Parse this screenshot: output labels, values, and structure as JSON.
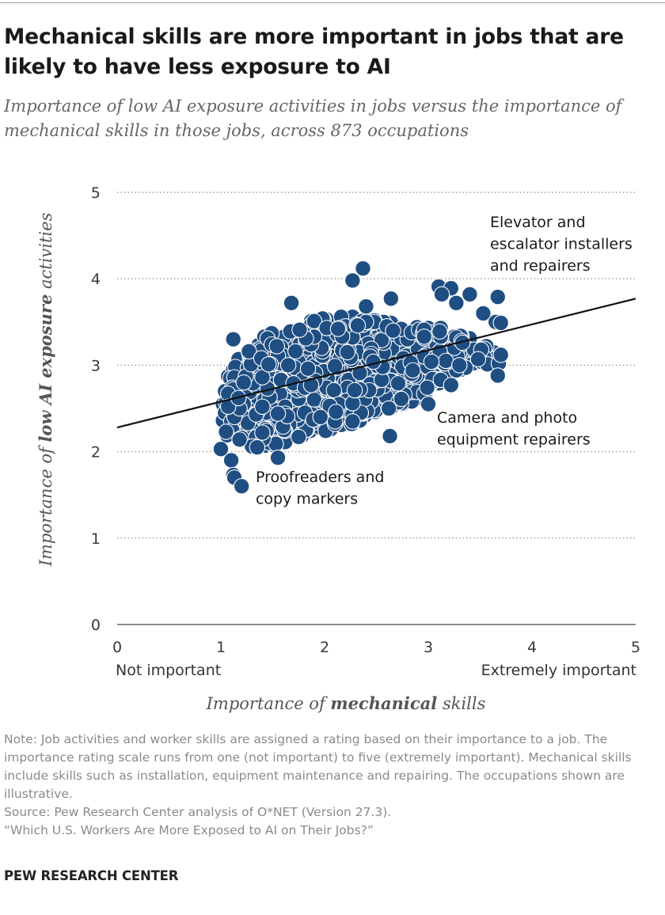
{
  "title": "Mechanical skills are more important in jobs that are likely to have less exposure to AI",
  "subtitle": "Importance of low AI exposure activities in jobs versus the importance of mechanical skills in those jobs, across 873 occupations",
  "chart_data": {
    "type": "scatter",
    "title": "Mechanical skills are more important in jobs that are likely to have less exposure to AI",
    "subtitle": "Importance of low AI exposure activities in jobs versus the importance of mechanical skills in those jobs, across 873 occupations",
    "xlabel": {
      "before": "Importance of ",
      "emphasis": "mechanical",
      "after": " skills"
    },
    "ylabel": {
      "before": "Importance of ",
      "emphasis": "low AI exposure",
      "after": " activities"
    },
    "xlim": [
      0,
      5
    ],
    "ylim": [
      0,
      5
    ],
    "x_ticks": [
      "0",
      "1",
      "2",
      "3",
      "4",
      "5"
    ],
    "y_ticks": [
      "0",
      "1",
      "2",
      "3",
      "4",
      "5"
    ],
    "x_scale_captions": {
      "low": "Not important",
      "high": "Extremely important"
    },
    "grid": "horizontal dotted",
    "n_points": 873,
    "point_color": "#1f4e82",
    "trendline": {
      "x": [
        0,
        5
      ],
      "y": [
        2.28,
        3.77
      ],
      "color": "#111111"
    },
    "cloud": {
      "outline": [
        [
          1.0,
          2.55
        ],
        [
          1.03,
          2.78
        ],
        [
          1.1,
          2.92
        ],
        [
          1.18,
          3.1
        ],
        [
          1.3,
          3.2
        ],
        [
          1.45,
          3.37
        ],
        [
          1.65,
          3.46
        ],
        [
          1.9,
          3.53
        ],
        [
          2.15,
          3.58
        ],
        [
          2.45,
          3.55
        ],
        [
          2.75,
          3.5
        ],
        [
          3.05,
          3.47
        ],
        [
          3.3,
          3.38
        ],
        [
          3.55,
          3.25
        ],
        [
          3.7,
          3.15
        ],
        [
          3.7,
          3.0
        ],
        [
          3.45,
          3.0
        ],
        [
          3.2,
          2.88
        ],
        [
          3.0,
          2.68
        ],
        [
          2.8,
          2.55
        ],
        [
          2.55,
          2.46
        ],
        [
          2.3,
          2.33
        ],
        [
          2.05,
          2.25
        ],
        [
          1.8,
          2.17
        ],
        [
          1.55,
          2.08
        ],
        [
          1.35,
          2.05
        ],
        [
          1.15,
          2.08
        ],
        [
          1.02,
          2.22
        ]
      ],
      "visible_points": [
        [
          1.5,
          2.7
        ],
        [
          1.7,
          2.9
        ],
        [
          1.9,
          3.0
        ],
        [
          2.1,
          2.8
        ],
        [
          2.3,
          2.9
        ],
        [
          2.5,
          3.0
        ],
        [
          2.7,
          3.1
        ],
        [
          2.9,
          3.1
        ],
        [
          3.1,
          3.2
        ],
        [
          1.8,
          2.6
        ],
        [
          2.0,
          2.5
        ],
        [
          2.2,
          2.6
        ],
        [
          2.4,
          2.7
        ],
        [
          2.6,
          2.8
        ],
        [
          2.8,
          2.9
        ],
        [
          1.4,
          3.1
        ],
        [
          1.6,
          3.2
        ],
        [
          2.0,
          3.3
        ],
        [
          2.4,
          3.3
        ],
        [
          2.8,
          3.3
        ],
        [
          1.3,
          2.5
        ],
        [
          1.6,
          2.4
        ],
        [
          1.2,
          2.8
        ]
      ],
      "seed": 7
    },
    "outlier_points": [
      {
        "x": 2.37,
        "y": 4.12
      },
      {
        "x": 2.27,
        "y": 3.98
      },
      {
        "x": 3.1,
        "y": 3.91
      },
      {
        "x": 3.22,
        "y": 3.89
      },
      {
        "x": 3.13,
        "y": 3.82
      },
      {
        "x": 3.4,
        "y": 3.82
      },
      {
        "x": 3.67,
        "y": 3.79
      },
      {
        "x": 2.64,
        "y": 3.77
      },
      {
        "x": 1.68,
        "y": 3.72
      },
      {
        "x": 3.27,
        "y": 3.72
      },
      {
        "x": 2.4,
        "y": 3.68
      },
      {
        "x": 3.53,
        "y": 3.6
      },
      {
        "x": 3.65,
        "y": 3.5
      },
      {
        "x": 3.7,
        "y": 3.49
      },
      {
        "x": 1.12,
        "y": 3.3
      },
      {
        "x": 3.7,
        "y": 3.12
      },
      {
        "x": 3.67,
        "y": 2.88
      },
      {
        "x": 3.22,
        "y": 2.77
      },
      {
        "x": 3.0,
        "y": 2.55
      },
      {
        "x": 2.27,
        "y": 2.35
      },
      {
        "x": 2.63,
        "y": 2.18
      },
      {
        "x": 1.55,
        "y": 1.93
      },
      {
        "x": 1.0,
        "y": 2.03
      },
      {
        "x": 1.1,
        "y": 1.9
      },
      {
        "x": 1.12,
        "y": 1.73
      },
      {
        "x": 1.13,
        "y": 1.7
      },
      {
        "x": 1.2,
        "y": 1.6
      },
      {
        "x": 1.35,
        "y": 2.05
      }
    ],
    "annotations": [
      {
        "lines": [
          "Elevator and",
          "escalator installers",
          "and repairers"
        ],
        "x": 3.6,
        "y": 4.6
      },
      {
        "lines": [
          "Camera and photo",
          "equipment repairers"
        ],
        "x": 3.08,
        "y": 2.52
      },
      {
        "lines": [
          "Proofreaders and",
          "copy markers"
        ],
        "x": 1.33,
        "y": 1.75
      }
    ]
  },
  "note": "Note: Job activities and worker skills are assigned a rating based on their importance to a job. The importance rating scale runs from one (not important) to five (extremely important). Mechanical skills include skills such as installation, equipment maintenance and repairing. The occupations shown are illustrative.",
  "source": "Source: Pew Research Center analysis of O*NET (Version 27.3).",
  "report": "“Which U.S. Workers Are More Exposed to AI on Their Jobs?”",
  "brand": "PEW RESEARCH CENTER"
}
